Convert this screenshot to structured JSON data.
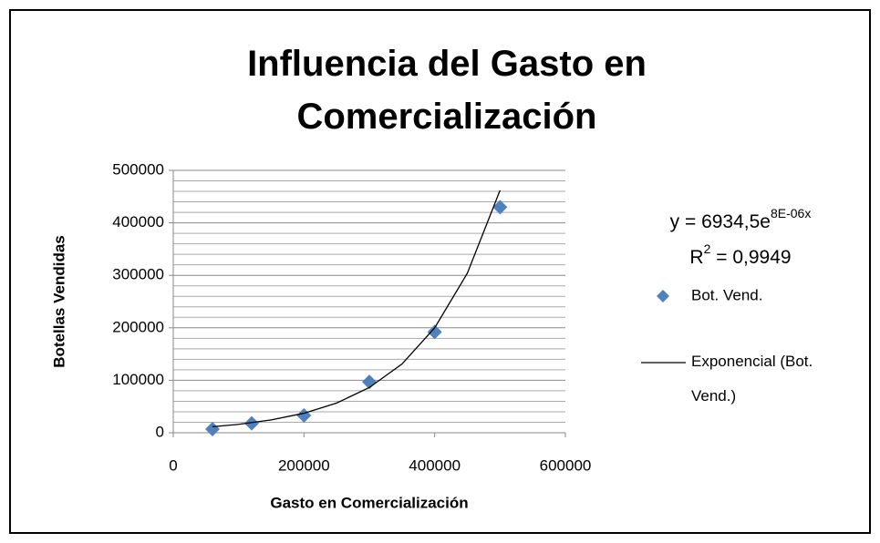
{
  "chart_data": {
    "type": "scatter",
    "title": "Influencia del Gasto en Comercialización",
    "x_label": "Gasto en Comercialización",
    "y_label": "Botellas Vendidas",
    "xlim": [
      0,
      600000
    ],
    "xticks": [
      0,
      200000,
      400000,
      600000
    ],
    "ylim": [
      0,
      500000
    ],
    "yticks": [
      0,
      100000,
      200000,
      300000,
      400000,
      500000
    ],
    "yminorticks": [
      20000,
      40000,
      60000,
      80000,
      120000,
      140000,
      160000,
      180000,
      220000,
      240000,
      260000,
      280000,
      320000,
      340000,
      360000,
      380000,
      420000,
      440000,
      460000,
      480000
    ],
    "grid": true,
    "series": [
      {
        "name": "Bot. Vend.",
        "color": "#4f81bd",
        "marker": "diamond",
        "x": [
          60000,
          120000,
          200000,
          300000,
          400000,
          500000
        ],
        "values": [
          7000,
          18000,
          33000,
          97000,
          192000,
          430000
        ]
      },
      {
        "name": "Exponencial (Bot. Vend.)",
        "color": "#000000",
        "marker": "line",
        "x": [
          60000,
          100000,
          150000,
          200000,
          250000,
          300000,
          350000,
          400000,
          450000,
          500000
        ],
        "values": [
          11500,
          16000,
          24500,
          37200,
          56600,
          86200,
          131000,
          200000,
          304000,
          462000
        ]
      }
    ],
    "equation": {
      "base": "y = 6934,5e",
      "exponent": "8E-06x"
    },
    "r_squared": {
      "base": "R",
      "exponent": "2",
      "rest": " = 0,9949"
    }
  }
}
